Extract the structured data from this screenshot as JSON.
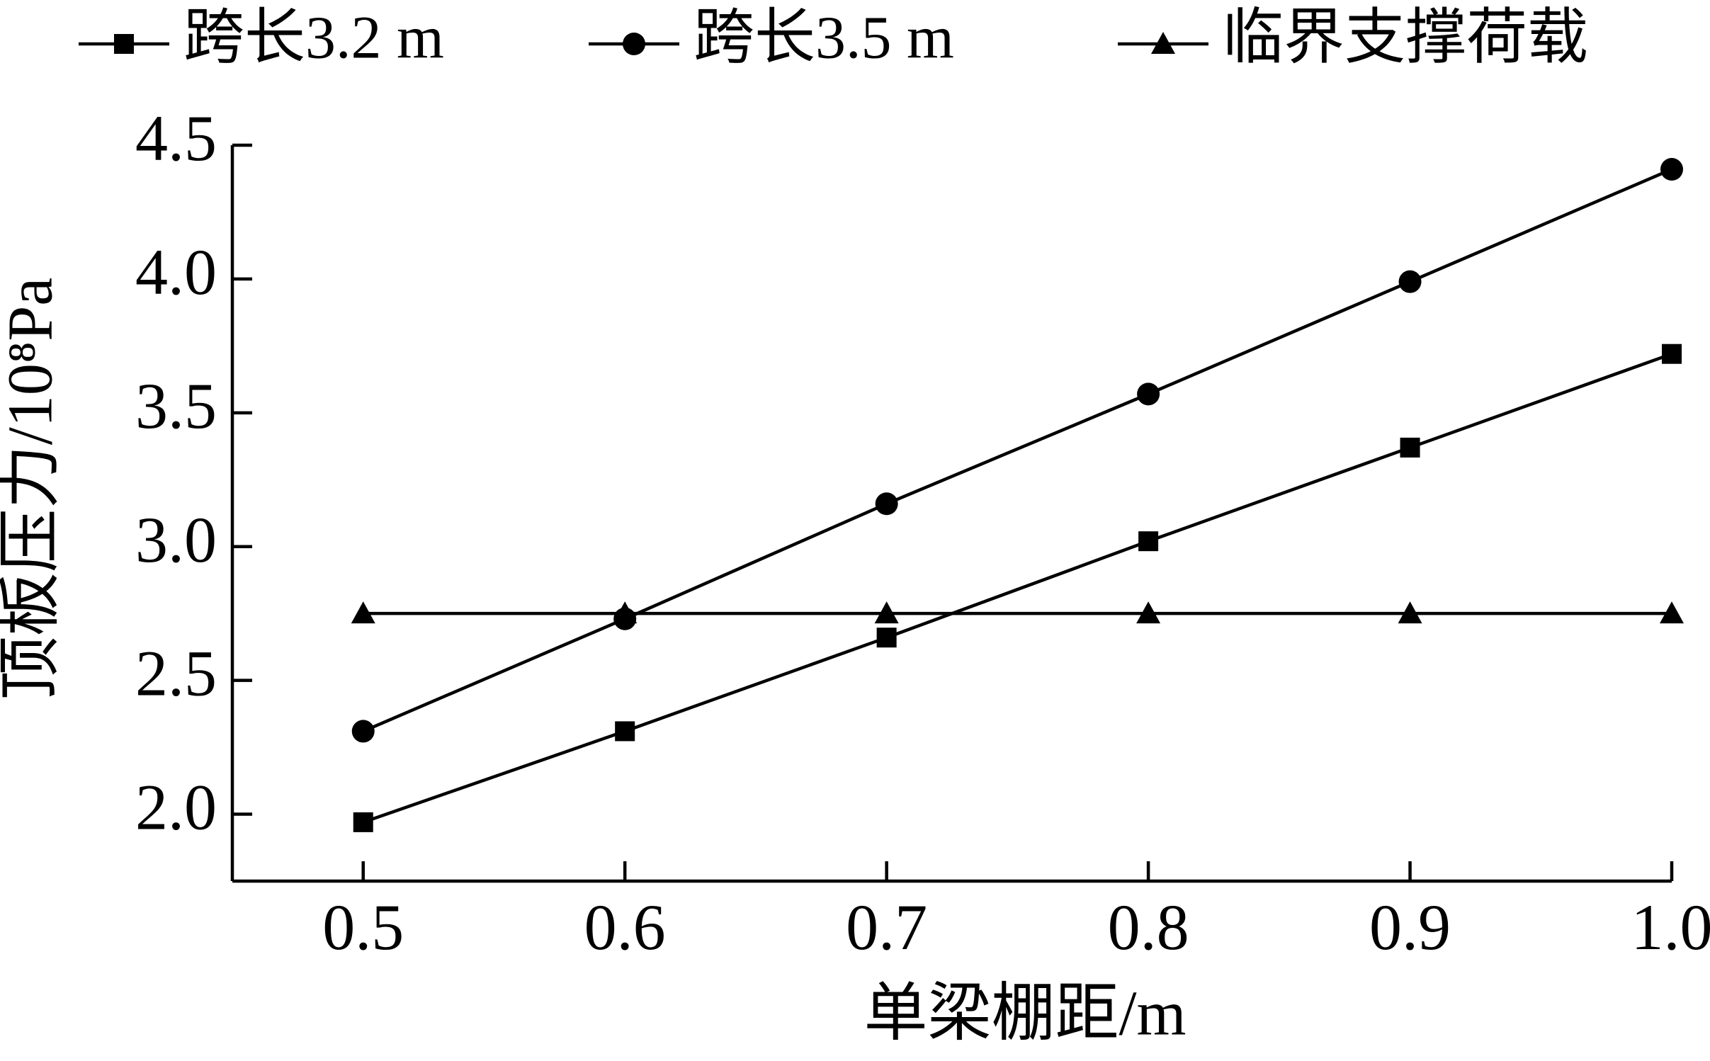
{
  "chart_data": {
    "type": "line",
    "x_label": "单梁棚距/m",
    "y_label": "顶板压力/10⁸Pa",
    "x": [
      0.5,
      0.6,
      0.7,
      0.8,
      0.9,
      1.0
    ],
    "series": [
      {
        "name": "跨长3.2 m",
        "color": "#000000",
        "marker": "square",
        "values": [
          1.97,
          2.31,
          2.66,
          3.02,
          3.37,
          3.72
        ]
      },
      {
        "name": "跨长3.5 m",
        "color": "#000000",
        "marker": "circle",
        "values": [
          2.31,
          2.73,
          3.16,
          3.57,
          3.99,
          4.41
        ]
      },
      {
        "name": "临界支撑荷载",
        "color": "#000000",
        "marker": "triangle",
        "values": [
          2.75,
          2.75,
          2.75,
          2.75,
          2.75,
          2.75
        ]
      }
    ],
    "xlim": [
      0.45,
      1.0
    ],
    "ylim": [
      1.75,
      4.5
    ],
    "xticks": [
      0.5,
      0.6,
      0.7,
      0.8,
      0.9,
      {
        "value": 1.0,
        "label": "1.0"
      }
    ],
    "yticks": [
      {
        "value": 2.0,
        "label": "2.0"
      },
      2.5,
      {
        "value": 3.0,
        "label": "3.0"
      },
      3.5,
      {
        "value": 4.0,
        "label": "4.0"
      },
      4.5
    ],
    "grid": false,
    "legend": "top"
  }
}
